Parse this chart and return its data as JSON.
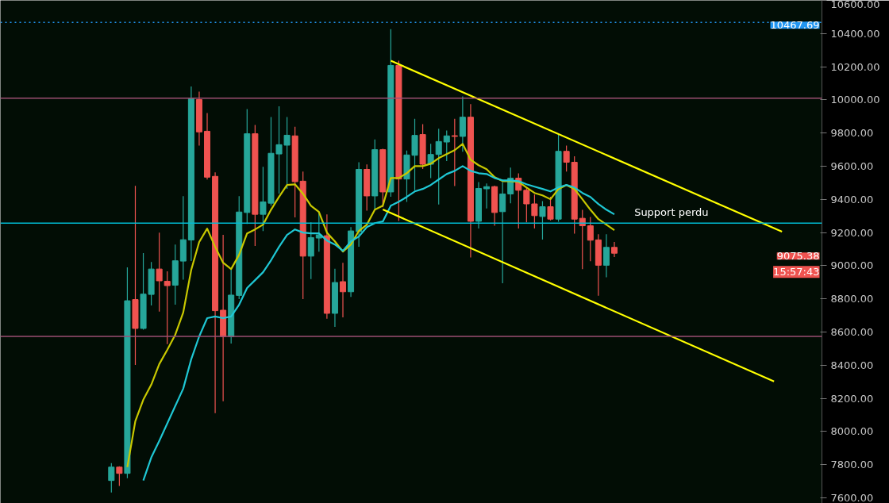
{
  "chart_data": {
    "type": "candlestick",
    "categories": [
      null,
      null,
      null,
      null,
      null,
      null,
      null,
      null,
      null,
      null,
      null,
      null,
      null,
      null,
      null,
      null,
      null,
      null,
      null,
      null,
      null,
      null,
      null,
      null,
      null,
      null,
      null,
      null,
      null,
      null,
      null,
      null,
      null,
      null,
      null,
      null,
      null,
      null,
      null,
      null,
      null,
      null,
      null,
      null,
      null,
      null,
      null,
      null,
      null,
      null,
      null,
      null,
      null,
      null,
      null,
      null,
      null,
      null,
      null,
      null,
      null,
      null,
      null,
      null,
      null,
      null,
      null,
      null,
      null,
      null,
      null,
      null,
      null,
      null,
      null,
      null,
      null,
      null,
      null,
      null,
      null,
      null,
      null,
      null,
      null,
      null,
      null,
      null,
      null,
      null
    ],
    "ohlc": [
      [
        7705,
        7810,
        7633,
        7786
      ],
      [
        7786,
        7791,
        7672,
        7748
      ],
      [
        7748,
        8990,
        7719,
        8789
      ],
      [
        8796,
        9482,
        8402,
        8622
      ],
      [
        8622,
        9076,
        8615,
        8829
      ],
      [
        8827,
        9023,
        8761,
        8980
      ],
      [
        8980,
        9200,
        8723,
        8909
      ],
      [
        8906,
        8966,
        8527,
        8880
      ],
      [
        8883,
        9128,
        8765,
        9030
      ],
      [
        9028,
        9420,
        8916,
        9157
      ],
      [
        9155,
        10081,
        9028,
        10007
      ],
      [
        10002,
        10050,
        9725,
        9807
      ],
      [
        9811,
        9921,
        9520,
        9534
      ],
      [
        9539,
        9563,
        8111,
        8729
      ],
      [
        8732,
        9186,
        8183,
        8573
      ],
      [
        8573,
        8980,
        8531,
        8823
      ],
      [
        8821,
        9420,
        8799,
        9324
      ],
      [
        9321,
        9945,
        9252,
        9796
      ],
      [
        9796,
        9849,
        9119,
        9310
      ],
      [
        9310,
        9596,
        9209,
        9385
      ],
      [
        9377,
        9897,
        9362,
        9678
      ],
      [
        9674,
        9961,
        9435,
        9730
      ],
      [
        9727,
        9897,
        9464,
        9787
      ],
      [
        9783,
        9838,
        9292,
        9507
      ],
      [
        9510,
        9568,
        8799,
        9058
      ],
      [
        9058,
        9262,
        8920,
        9170
      ],
      [
        9167,
        9321,
        9085,
        9186
      ],
      [
        9181,
        9310,
        8681,
        8713
      ],
      [
        8713,
        8982,
        8632,
        8899
      ],
      [
        8904,
        9018,
        8689,
        8843
      ],
      [
        8843,
        9233,
        8812,
        9210
      ],
      [
        9206,
        9624,
        9114,
        9581
      ],
      [
        9581,
        9611,
        9332,
        9421
      ],
      [
        9421,
        9762,
        9337,
        9700
      ],
      [
        9700,
        9706,
        9353,
        9445
      ],
      [
        9445,
        10427,
        9416,
        10208
      ],
      [
        10208,
        10236,
        9270,
        9523
      ],
      [
        9523,
        9695,
        9385,
        9668
      ],
      [
        9666,
        9886,
        9456,
        9786
      ],
      [
        9791,
        9854,
        9583,
        9612
      ],
      [
        9612,
        9735,
        9528,
        9671
      ],
      [
        9671,
        9826,
        9369,
        9749
      ],
      [
        9746,
        9815,
        9631,
        9783
      ],
      [
        9784,
        9886,
        9480,
        9780
      ],
      [
        9780,
        10021,
        9687,
        9896
      ],
      [
        9896,
        9974,
        9050,
        9268
      ],
      [
        9268,
        9504,
        9225,
        9466
      ],
      [
        9464,
        9496,
        9345,
        9477
      ],
      [
        9477,
        9483,
        9241,
        9321
      ],
      [
        9326,
        9504,
        8894,
        9433
      ],
      [
        9433,
        9592,
        9377,
        9528
      ],
      [
        9528,
        9557,
        9225,
        9455
      ],
      [
        9455,
        9472,
        9262,
        9373
      ],
      [
        9373,
        9429,
        9225,
        9302
      ],
      [
        9297,
        9390,
        9158,
        9356
      ],
      [
        9356,
        9416,
        9273,
        9281
      ],
      [
        9281,
        9791,
        9265,
        9690
      ],
      [
        9690,
        9724,
        9568,
        9624
      ],
      [
        9624,
        9660,
        9194,
        9281
      ],
      [
        9286,
        9337,
        8979,
        9241
      ],
      [
        9241,
        9294,
        9027,
        9154
      ],
      [
        9156,
        9190,
        8819,
        9003
      ],
      [
        9003,
        9190,
        8931,
        9111
      ],
      [
        9111,
        9143,
        9053,
        9075.38
      ],
      null,
      null,
      null,
      null,
      null,
      null,
      null,
      null,
      null,
      null,
      null,
      null,
      null,
      null,
      null,
      null,
      null,
      null,
      null,
      null,
      null,
      null,
      null,
      null,
      null,
      null
    ],
    "colors": [
      "#26a69a",
      "#ef5350",
      "#26a69a",
      "#ef5350",
      "#26a69a",
      "#26a69a",
      "#ef5350",
      "#ef5350",
      "#26a69a",
      "#26a69a",
      "#26a69a",
      "#ef5350",
      "#ef5350",
      "#ef5350",
      "#ef5350",
      "#26a69a",
      "#26a69a",
      "#26a69a",
      "#ef5350",
      "#26a69a",
      "#26a69a",
      "#26a69a",
      "#26a69a",
      "#ef5350",
      "#ef5350",
      "#26a69a",
      "#26a69a",
      "#ef5350",
      "#26a69a",
      "#ef5350",
      "#26a69a",
      "#26a69a",
      "#ef5350",
      "#26a69a",
      "#ef5350",
      "#26a69a",
      "#ef5350",
      "#26a69a",
      "#26a69a",
      "#ef5350",
      "#26a69a",
      "#26a69a",
      "#26a69a",
      "#ef5350",
      "#26a69a",
      "#ef5350",
      "#26a69a",
      "#26a69a",
      "#ef5350",
      "#26a69a",
      "#26a69a",
      "#ef5350",
      "#ef5350",
      "#ef5350",
      "#26a69a",
      "#ef5350",
      "#26a69a",
      "#ef5350",
      "#ef5350",
      "#ef5350",
      "#ef5350",
      "#ef5350",
      "#26a69a",
      "#ef5350",
      null,
      null,
      null,
      null,
      null,
      null,
      null,
      null,
      null,
      null,
      null,
      null,
      null,
      null,
      null,
      null,
      null,
      null,
      null,
      null,
      null,
      null,
      null,
      null,
      null,
      null
    ],
    "series": [
      {
        "type": "line",
        "color": "#c8c800",
        "values": [
          null,
          null,
          7786,
          8063,
          8192,
          8283,
          8407,
          8493,
          8584,
          8718,
          8975,
          9143,
          9224,
          9114,
          9018,
          8980,
          9066,
          9195,
          9219,
          9248,
          9338,
          9415,
          9487,
          9491,
          9434,
          9362,
          9324,
          9200,
          9147,
          9085,
          9128,
          9210,
          9248,
          9338,
          9362,
          9529,
          9529,
          9558,
          9601,
          9601,
          9615,
          9649,
          9673,
          9697,
          9735,
          9639,
          9606,
          9582,
          9534,
          9510,
          9510,
          9506,
          9472,
          9439,
          9424,
          9401,
          9463,
          9487,
          9463,
          9401,
          9338,
          9281,
          9248,
          9214,
          null,
          null,
          null,
          null,
          null,
          null,
          null,
          null,
          null,
          null,
          null,
          null,
          null,
          null,
          null,
          null,
          null,
          null,
          null,
          null,
          null,
          null,
          null,
          null,
          null,
          null
        ]
      },
      {
        "type": "line",
        "color": "#1fc7d4",
        "values": [
          null,
          null,
          null,
          null,
          7705,
          7844,
          7944,
          8049,
          8154,
          8259,
          8436,
          8574,
          8684,
          8694,
          8684,
          8694,
          8765,
          8866,
          8913,
          8961,
          9033,
          9114,
          9186,
          9219,
          9200,
          9195,
          9195,
          9152,
          9128,
          9090,
          9147,
          9176,
          9233,
          9257,
          9267,
          9362,
          9386,
          9415,
          9448,
          9463,
          9487,
          9520,
          9553,
          9572,
          9601,
          9572,
          9558,
          9553,
          9529,
          9515,
          9515,
          9510,
          9491,
          9477,
          9463,
          9448,
          9472,
          9487,
          9472,
          9439,
          9415,
          9372,
          9338,
          9310,
          null,
          null,
          null,
          null,
          null,
          null,
          null,
          null,
          null,
          null,
          null,
          null,
          null,
          null,
          null,
          null,
          null,
          null,
          null,
          null,
          null,
          null,
          null,
          null,
          null,
          null
        ]
      },
      {
        "type": "line",
        "color": "#ffff00",
        "values": [
          null,
          null,
          null,
          null,
          null,
          null,
          null,
          null,
          null,
          null,
          null,
          null,
          null,
          null,
          null,
          null,
          null,
          null,
          null,
          null,
          null,
          null,
          null,
          null,
          null,
          null,
          null,
          null,
          null,
          null,
          null,
          null,
          null,
          null,
          null,
          10236,
          null,
          null,
          null,
          null,
          null,
          null,
          null,
          null,
          null,
          null,
          null,
          null,
          null,
          null,
          null,
          null,
          null,
          null,
          null,
          null,
          null,
          null,
          null,
          null,
          null,
          null,
          null,
          null,
          null,
          null,
          null,
          null,
          null,
          null,
          null,
          null,
          null,
          null,
          null,
          null,
          null,
          null,
          null,
          null,
          null,
          null,
          null,
          null,
          9205,
          null,
          null,
          null,
          null,
          null
        ]
      },
      {
        "type": "line",
        "color": "#ffff00",
        "values": [
          null,
          null,
          null,
          null,
          null,
          null,
          null,
          null,
          null,
          null,
          null,
          null,
          null,
          null,
          null,
          null,
          null,
          null,
          null,
          null,
          null,
          null,
          null,
          null,
          null,
          null,
          null,
          null,
          null,
          null,
          null,
          null,
          null,
          null,
          9339,
          null,
          null,
          null,
          null,
          null,
          null,
          null,
          null,
          null,
          null,
          null,
          null,
          null,
          null,
          null,
          null,
          null,
          null,
          null,
          null,
          null,
          null,
          null,
          null,
          null,
          null,
          null,
          null,
          null,
          null,
          null,
          null,
          null,
          null,
          null,
          null,
          null,
          null,
          null,
          null,
          null,
          null,
          null,
          null,
          null,
          null,
          null,
          null,
          8302,
          null,
          null,
          null,
          null,
          null,
          null
        ]
      }
    ],
    "ylim": [
      7567,
      10600
    ],
    "yticks": [
      {
        "value": 7600,
        "label": "7600.00"
      },
      {
        "value": 7800,
        "label": "7800.00"
      },
      {
        "value": 8000,
        "label": "8000.00"
      },
      {
        "value": 8200,
        "label": "8200.00"
      },
      {
        "value": 8400,
        "label": "8400.00"
      },
      {
        "value": 8600,
        "label": "8600.00"
      },
      {
        "value": 8800,
        "label": "8800.00"
      },
      {
        "value": 9000,
        "label": "9000.00"
      },
      {
        "value": 9200,
        "label": "9200.00"
      },
      {
        "value": 9400,
        "label": "9400.00"
      },
      {
        "value": 9600,
        "label": "9600.00"
      },
      {
        "value": 9800,
        "label": "9800.00"
      },
      {
        "value": 10000,
        "label": "10000.00"
      },
      {
        "value": 10200,
        "label": "10200.00"
      },
      {
        "value": 10400,
        "label": "10400.00"
      },
      {
        "value": 10600,
        "label": "10600.00"
      }
    ],
    "ref_lines": [
      {
        "axis": "y",
        "value": 10010,
        "color": "#9c4f73"
      },
      {
        "axis": "y",
        "value": 8574,
        "color": "#9c4f73"
      },
      {
        "axis": "y",
        "value": 9257,
        "color": "#00bcd4",
        "label": "Support perdu"
      },
      {
        "axis": "y",
        "value": 10467.69,
        "color": "#2196f3",
        "line_style": "dotted",
        "label": "10467.69"
      }
    ],
    "annotations": [
      "9075.38",
      "15:57:43"
    ],
    "tick_labels": "y",
    "grid": false
  }
}
